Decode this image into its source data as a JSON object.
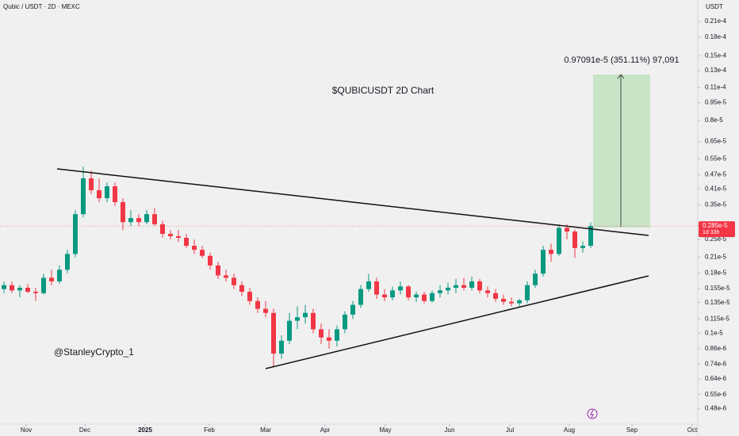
{
  "chart_data": {
    "type": "candlestick",
    "header": "Qubic / USDT · 2D · MEXC",
    "axis_unit": "USDT",
    "title": "$QUBICUSDT 2D Chart",
    "watermark": "@StanleyCrypto_1",
    "measure_label": "0.97091e-5 (351.11%) 97,091",
    "countdown": "1d 33h",
    "last_price": {
      "value": 2.85e-06,
      "label": "0.285e-5"
    },
    "log_scale": true,
    "grid": false,
    "up_color": "#089981",
    "down_color": "#f23645",
    "xlim": [
      -0.5,
      87.5
    ],
    "xticks": [
      {
        "value": 2.8,
        "label": "Nov"
      },
      {
        "value": 10.2,
        "label": "Dec"
      },
      {
        "value": 17.8,
        "label": "2025"
      },
      {
        "value": 25.9,
        "label": "Feb"
      },
      {
        "value": 33,
        "label": "Mar"
      },
      {
        "value": 40.5,
        "label": "Apr"
      },
      {
        "value": 48.1,
        "label": "May"
      },
      {
        "value": 56.2,
        "label": "Jun"
      },
      {
        "value": 63.8,
        "label": "Jul"
      },
      {
        "value": 71.3,
        "label": "Aug"
      },
      {
        "value": 79.2,
        "label": "Sep"
      },
      {
        "value": 86.8,
        "label": "Oct"
      }
    ],
    "ylim": [
      4.12e-07,
      2.59e-05
    ],
    "yticks": [
      {
        "value": 2.1e-05,
        "label": "0.21e-4"
      },
      {
        "value": 1.8e-05,
        "label": "0.18e-4"
      },
      {
        "value": 1.5e-05,
        "label": "0.15e-4"
      },
      {
        "value": 1.3e-05,
        "label": "0.13e-4"
      },
      {
        "value": 1.1e-05,
        "label": "0.11e-4"
      },
      {
        "value": 9.5e-06,
        "label": "0.95e-5"
      },
      {
        "value": 8e-06,
        "label": "0.8e-5"
      },
      {
        "value": 6.5e-06,
        "label": "0.65e-5"
      },
      {
        "value": 5.5e-06,
        "label": "0.55e-5"
      },
      {
        "value": 4.7e-06,
        "label": "0.47e-5"
      },
      {
        "value": 4.1e-06,
        "label": "0.41e-5"
      },
      {
        "value": 3.5e-06,
        "label": "0.35e-5"
      },
      {
        "value": 2.5e-06,
        "label": "0.25e-5"
      },
      {
        "value": 2.1e-06,
        "label": "0.21e-5"
      },
      {
        "value": 1.8e-06,
        "label": "0.18e-5"
      },
      {
        "value": 1.55e-06,
        "label": "0.155e-5"
      },
      {
        "value": 1.35e-06,
        "label": "0.135e-5"
      },
      {
        "value": 1.15e-06,
        "label": "0.115e-5"
      },
      {
        "value": 1e-06,
        "label": "0.1e-5"
      },
      {
        "value": 8.6e-07,
        "label": "0.86e-6"
      },
      {
        "value": 7.4e-07,
        "label": "0.74e-6"
      },
      {
        "value": 6.4e-07,
        "label": "0.64e-6"
      },
      {
        "value": 5.5e-07,
        "label": "0.55e-6"
      },
      {
        "value": 4.8e-07,
        "label": "0.48e-6"
      }
    ],
    "open": [
      1.54e-06,
      1.6e-06,
      1.52e-06,
      1.56e-06,
      1.5e-06,
      1.48e-06,
      1.72e-06,
      1.66e-06,
      1.86e-06,
      2.17e-06,
      3.2e-06,
      4.54e-06,
      4.04e-06,
      3.74e-06,
      4.2e-06,
      3.6e-06,
      2.96e-06,
      3.08e-06,
      2.96e-06,
      3.2e-06,
      2.9e-06,
      2.64e-06,
      2.58e-06,
      2.54e-06,
      2.35e-06,
      2.26e-06,
      2.13e-06,
      1.94e-06,
      1.76e-06,
      1.72e-06,
      1.6e-06,
      1.5e-06,
      1.37e-06,
      1.27e-06,
      1.22e-06,
      8.2e-07,
      9.3e-07,
      1.13e-06,
      1.17e-06,
      1.22e-06,
      1.04e-06,
      9.6e-07,
      9.3e-07,
      1.04e-06,
      1.2e-06,
      1.32e-06,
      1.54e-06,
      1.66e-06,
      1.46e-06,
      1.42e-06,
      1.52e-06,
      1.58e-06,
      1.42e-06,
      1.46e-06,
      1.37e-06,
      1.48e-06,
      1.52e-06,
      1.56e-06,
      1.6e-06,
      1.56e-06,
      1.66e-06,
      1.52e-06,
      1.48e-06,
      1.4e-06,
      1.36e-06,
      1.34e-06,
      1.38e-06,
      1.6e-06,
      1.79e-06,
      2.26e-06,
      2.17e-06,
      2.8e-06,
      2.7e-06,
      2.3e-06,
      2.35e-06
    ],
    "high": [
      1.66e-06,
      1.66e-06,
      1.6e-06,
      1.62e-06,
      1.56e-06,
      1.79e-06,
      1.86e-06,
      1.94e-06,
      2.26e-06,
      3.33e-06,
      5.09e-06,
      4.9e-06,
      4.54e-06,
      4.36e-06,
      4.36e-06,
      3.74e-06,
      3.33e-06,
      3.2e-06,
      3.33e-06,
      3.4e-06,
      3e-06,
      2.74e-06,
      2.74e-06,
      2.64e-06,
      2.5e-06,
      2.35e-06,
      2.2e-06,
      2.01e-06,
      1.86e-06,
      1.79e-06,
      1.66e-06,
      1.56e-06,
      1.42e-06,
      1.37e-06,
      1.27e-06,
      9.8e-07,
      1.22e-06,
      1.3e-06,
      1.32e-06,
      1.27e-06,
      1.1e-06,
      1.04e-06,
      1.08e-06,
      1.24e-06,
      1.37e-06,
      1.6e-06,
      1.79e-06,
      1.72e-06,
      1.54e-06,
      1.58e-06,
      1.66e-06,
      1.6e-06,
      1.5e-06,
      1.5e-06,
      1.52e-06,
      1.6e-06,
      1.64e-06,
      1.7e-06,
      1.72e-06,
      1.74e-06,
      1.7e-06,
      1.58e-06,
      1.54e-06,
      1.46e-06,
      1.42e-06,
      1.4e-06,
      1.66e-06,
      1.86e-06,
      2.35e-06,
      2.4e-06,
      2.9e-06,
      2.9e-06,
      2.75e-06,
      2.45e-06,
      2.95e-06
    ],
    "low": [
      1.48e-06,
      1.48e-06,
      1.42e-06,
      1.48e-06,
      1.37e-06,
      1.46e-06,
      1.6e-06,
      1.62e-06,
      1.8e-06,
      2.1e-06,
      3.1e-06,
      3.89e-06,
      3.6e-06,
      3.6e-06,
      3.46e-06,
      2.74e-06,
      2.85e-06,
      2.85e-06,
      2.9e-06,
      2.85e-06,
      2.54e-06,
      2.5e-06,
      2.44e-06,
      2.3e-06,
      2.17e-06,
      2.09e-06,
      1.86e-06,
      1.7e-06,
      1.66e-06,
      1.54e-06,
      1.44e-06,
      1.32e-06,
      1.22e-06,
      1.17e-06,
      7.2e-07,
      7.8e-07,
      9e-07,
      1.04e-06,
      1.1e-06,
      1e-06,
      9e-07,
      8.6e-07,
      8.8e-07,
      1e-06,
      1.15e-06,
      1.28e-06,
      1.5e-06,
      1.4e-06,
      1.37e-06,
      1.38e-06,
      1.46e-06,
      1.38e-06,
      1.36e-06,
      1.34e-06,
      1.35e-06,
      1.42e-06,
      1.46e-06,
      1.48e-06,
      1.52e-06,
      1.52e-06,
      1.48e-06,
      1.42e-06,
      1.36e-06,
      1.32e-06,
      1.3e-06,
      1.3e-06,
      1.34e-06,
      1.56e-06,
      1.74e-06,
      2.01e-06,
      2.13e-06,
      2.5e-06,
      2.09e-06,
      2.2e-06,
      2.3e-06
    ],
    "close": [
      1.6e-06,
      1.52e-06,
      1.56e-06,
      1.5e-06,
      1.48e-06,
      1.72e-06,
      1.66e-06,
      1.86e-06,
      2.17e-06,
      3.2e-06,
      4.54e-06,
      4.04e-06,
      3.74e-06,
      4.2e-06,
      3.6e-06,
      2.96e-06,
      3.08e-06,
      2.96e-06,
      3.2e-06,
      2.9e-06,
      2.64e-06,
      2.58e-06,
      2.54e-06,
      2.35e-06,
      2.26e-06,
      2.13e-06,
      1.94e-06,
      1.76e-06,
      1.72e-06,
      1.6e-06,
      1.5e-06,
      1.37e-06,
      1.27e-06,
      1.22e-06,
      8.2e-07,
      9.3e-07,
      1.13e-06,
      1.17e-06,
      1.22e-06,
      1.04e-06,
      9.6e-07,
      9.3e-07,
      1.04e-06,
      1.2e-06,
      1.32e-06,
      1.54e-06,
      1.66e-06,
      1.46e-06,
      1.42e-06,
      1.52e-06,
      1.58e-06,
      1.42e-06,
      1.46e-06,
      1.37e-06,
      1.48e-06,
      1.52e-06,
      1.56e-06,
      1.6e-06,
      1.56e-06,
      1.66e-06,
      1.52e-06,
      1.48e-06,
      1.4e-06,
      1.36e-06,
      1.34e-06,
      1.38e-06,
      1.6e-06,
      1.79e-06,
      2.26e-06,
      2.17e-06,
      2.8e-06,
      2.7e-06,
      2.3e-06,
      2.35e-06,
      2.85e-06
    ]
  }
}
